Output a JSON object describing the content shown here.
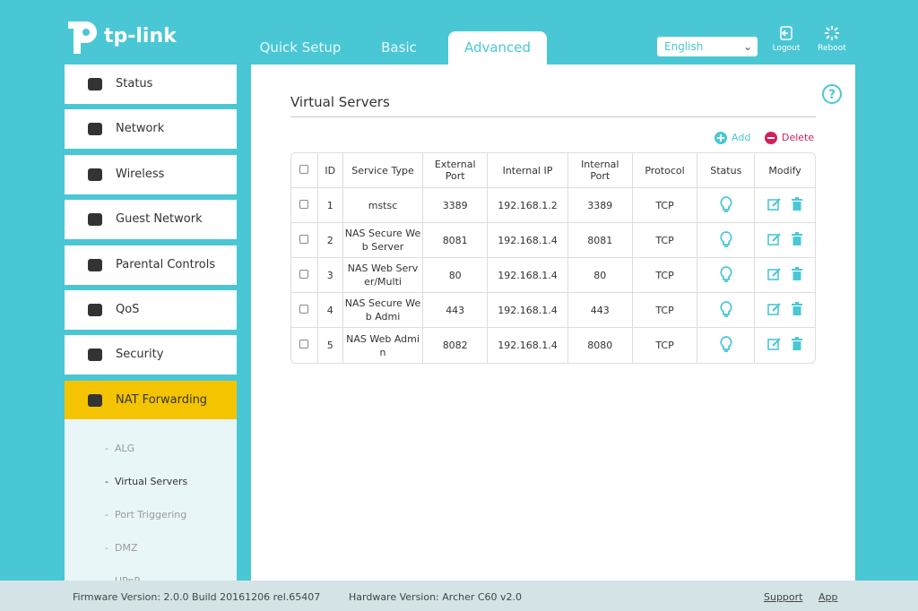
{
  "header": {
    "logo": "tp-link",
    "tabs": [
      "Quick Setup",
      "Basic",
      "Advanced"
    ],
    "language": "English",
    "logout": "Logout",
    "reboot": "Reboot"
  },
  "sidebar": {
    "items": [
      "Status",
      "Network",
      "Wireless",
      "Guest Network",
      "Parental Controls",
      "QoS",
      "Security",
      "NAT Forwarding"
    ],
    "subitems": [
      "ALG",
      "Virtual Servers",
      "Port Triggering",
      "DMZ",
      "UPnP"
    ]
  },
  "content": {
    "title": "Virtual Servers",
    "add": "Add",
    "delete": "Delete",
    "table": {
      "headers": [
        "ID",
        "Service Type",
        "External Port",
        "Internal IP",
        "Internal Port",
        "Protocol",
        "Status",
        "Modify"
      ],
      "rows": [
        [
          "1",
          "mstsc",
          "3389",
          "192.168.1.2",
          "3389",
          "TCP"
        ],
        [
          "2",
          "NAS Secure Web Server",
          "8081",
          "192.168.1.4",
          "8081",
          "TCP"
        ],
        [
          "3",
          "NAS Web Server/Multi",
          "80",
          "192.168.1.4",
          "80",
          "TCP"
        ],
        [
          "4",
          "NAS Secure Web Admi",
          "443",
          "192.168.1.4",
          "443",
          "TCP"
        ],
        [
          "5",
          "NAS Web Admin",
          "8082",
          "192.168.1.4",
          "8080",
          "TCP"
        ]
      ]
    }
  },
  "footer": {
    "firmware": "Firmware Version: 2.0.0 Build 20161206 rel.65407",
    "hardware": "Hardware Version: Archer C60 v2.0",
    "support": "Support",
    "app": "App"
  }
}
